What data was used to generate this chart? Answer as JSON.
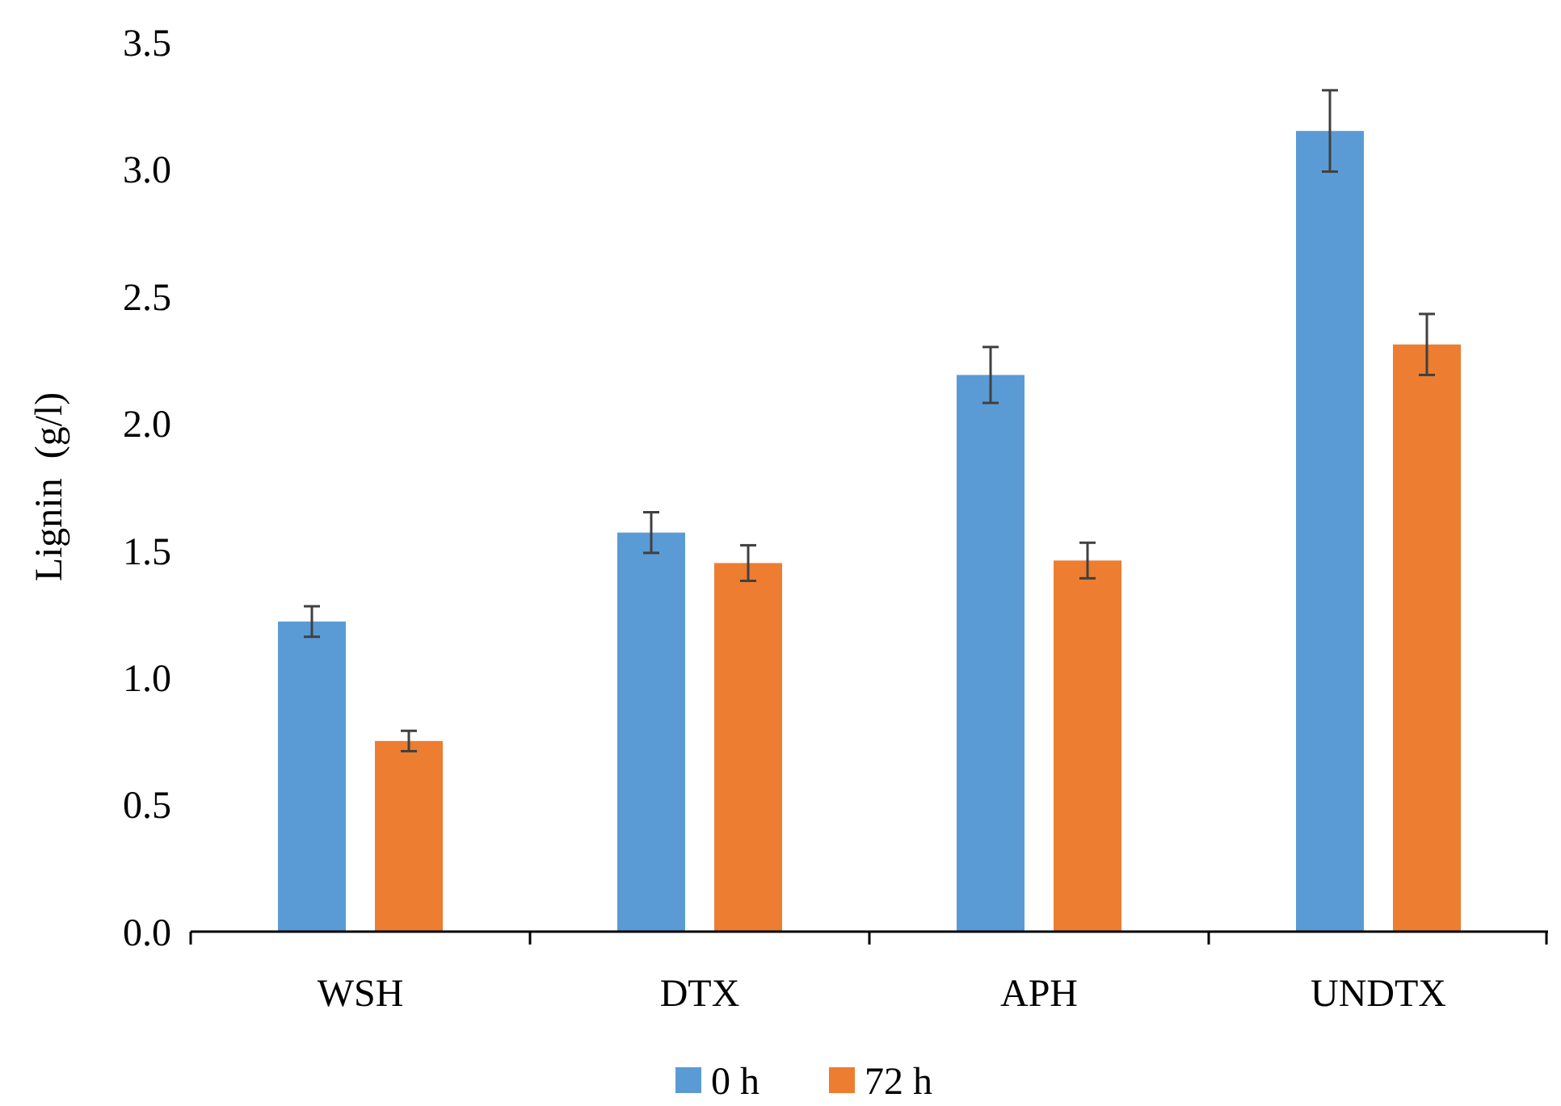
{
  "chart_data": {
    "type": "bar",
    "ylabel": "Lignin  (g/l)",
    "categories": [
      "WSH",
      "DTX",
      "APH",
      "UNDTX"
    ],
    "series": [
      {
        "name": "0 h",
        "color": "#5b9bd5",
        "values": [
          1.22,
          1.57,
          2.19,
          3.15
        ],
        "errors": [
          0.06,
          0.08,
          0.11,
          0.16
        ]
      },
      {
        "name": "72 h",
        "color": "#ed7d31",
        "values": [
          0.75,
          1.45,
          1.46,
          2.31
        ],
        "errors": [
          0.04,
          0.07,
          0.07,
          0.12
        ]
      }
    ],
    "ylim": [
      0,
      3.5
    ],
    "yticks": [
      {
        "value": 0,
        "label": "0.0"
      },
      {
        "value": 0.5,
        "label": "0.5"
      },
      {
        "value": 1,
        "label": "1.0"
      },
      {
        "value": 1.5,
        "label": "1.5"
      },
      {
        "value": 2,
        "label": "2.0"
      },
      {
        "value": 2.5,
        "label": "2.5"
      },
      {
        "value": 3,
        "label": "3.0"
      },
      {
        "value": 3.5,
        "label": "3.5"
      }
    ],
    "grid": false,
    "legend": "bottom"
  }
}
